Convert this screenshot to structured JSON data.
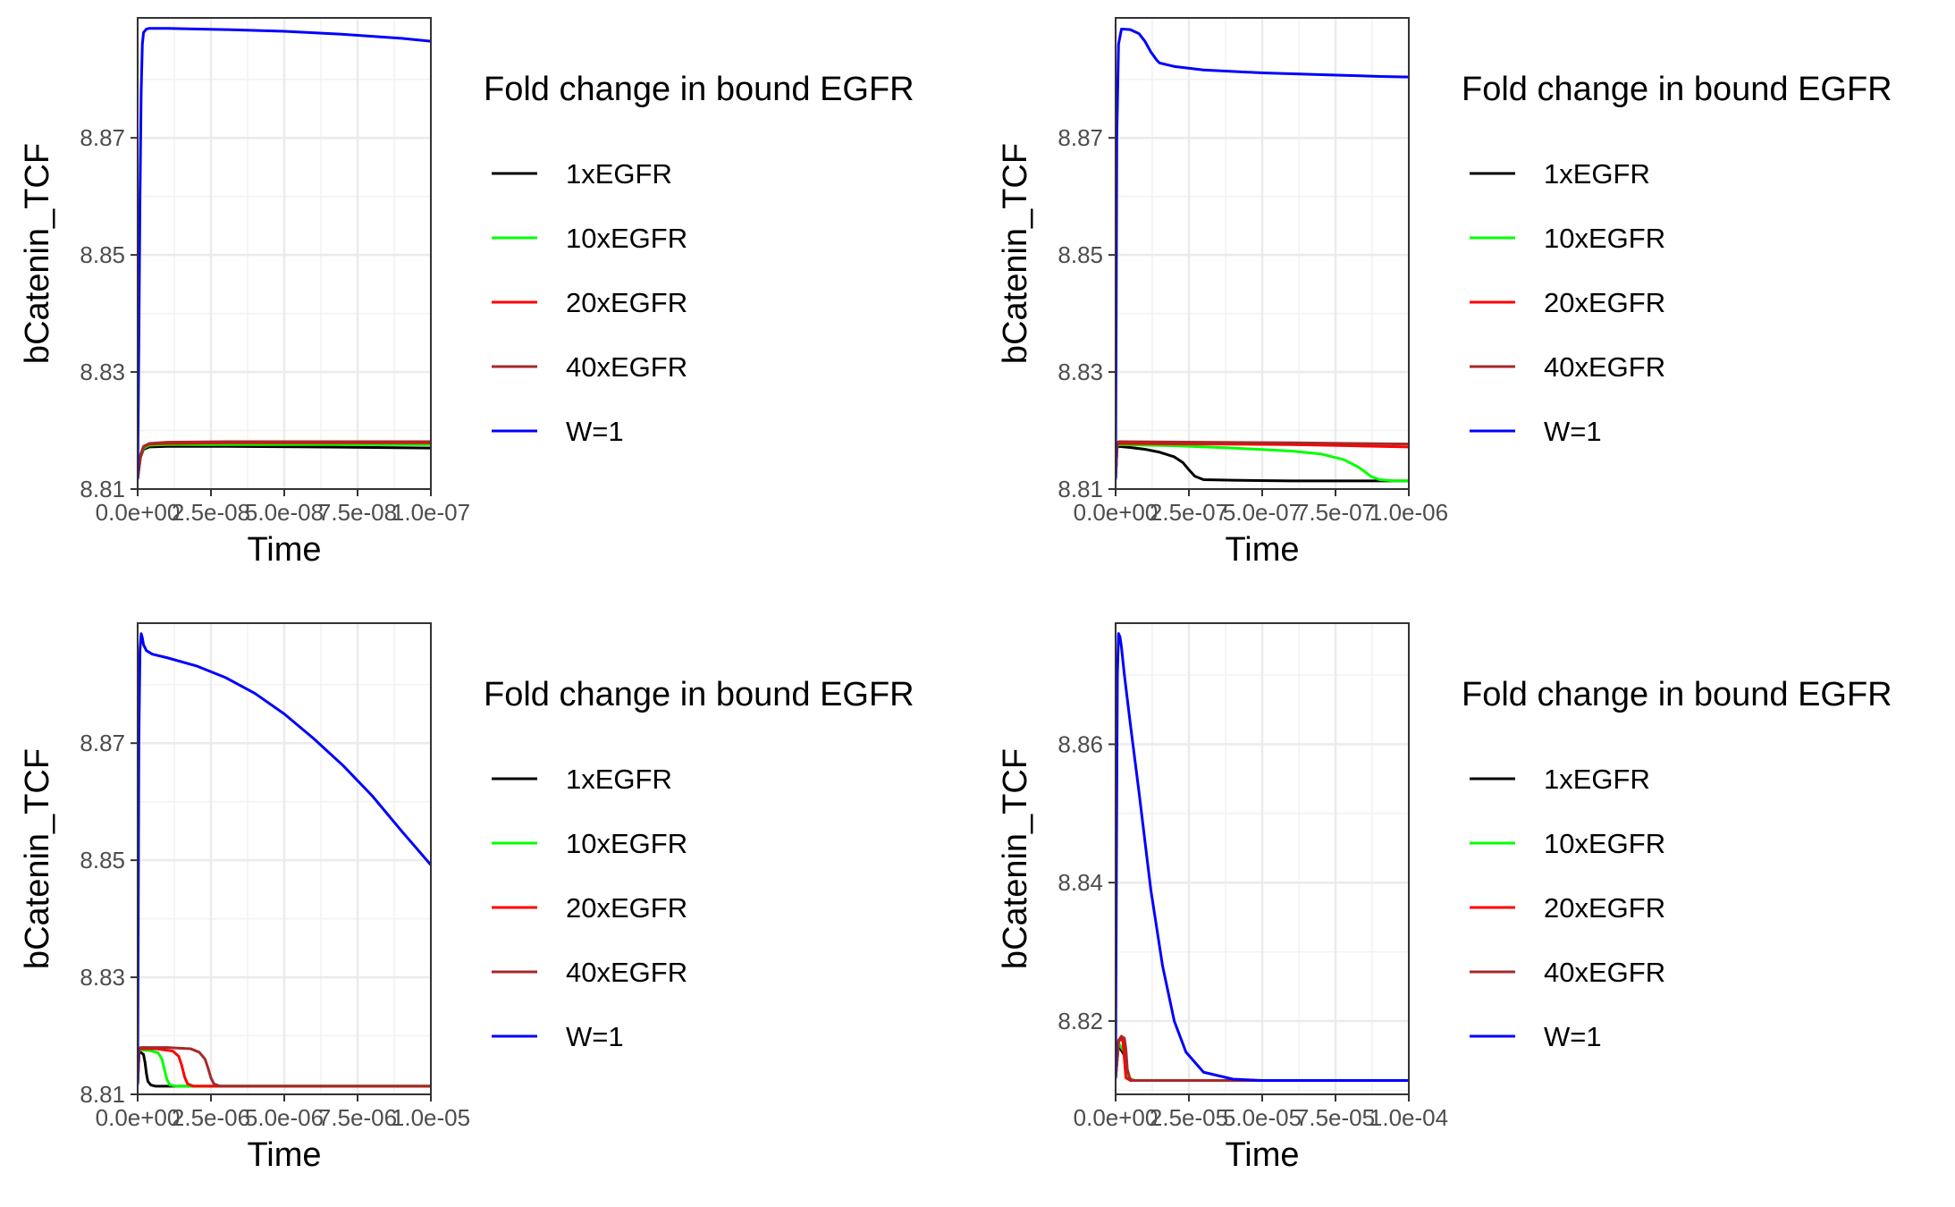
{
  "chart_data": [
    {
      "type": "line",
      "xlabel": "Time",
      "ylabel": "bCatenin_TCF",
      "xlim": [
        0,
        1e-07
      ],
      "ylim": [
        8.81,
        8.8905
      ],
      "x_tick_values": [
        0,
        2.5e-08,
        5e-08,
        7.5e-08,
        1e-07
      ],
      "x_tick_labels": [
        "0.0e+00",
        "2.5e-08",
        "5.0e-08",
        "7.5e-08",
        "1.0e-07"
      ],
      "y_tick_values": [
        8.81,
        8.83,
        8.85,
        8.87
      ],
      "y_tick_labels": [
        "8.81",
        "8.83",
        "8.85",
        "8.87"
      ],
      "grid": true,
      "legend": {
        "title": "Fold change in bound EGFR",
        "placement": "right",
        "entries": [
          "1xEGFR",
          "10xEGFR",
          "20xEGFR",
          "40xEGFR",
          "W=1"
        ]
      },
      "series": [
        {
          "name": "1xEGFR",
          "color": "#000000",
          "x": [
            0,
            1e-09,
            2e-09,
            4e-09,
            1e-08,
            3e-08,
            6e-08,
            1e-07
          ],
          "y": [
            8.8118,
            8.8155,
            8.8168,
            8.8172,
            8.8173,
            8.8173,
            8.8172,
            8.817
          ]
        },
        {
          "name": "10xEGFR",
          "color": "#00ff00",
          "x": [
            0,
            1e-09,
            2e-09,
            4e-09,
            1e-08,
            3e-08,
            6e-08,
            1e-07
          ],
          "y": [
            8.8118,
            8.8157,
            8.817,
            8.8175,
            8.8176,
            8.8176,
            8.8176,
            8.8176
          ]
        },
        {
          "name": "20xEGFR",
          "color": "#ff0000",
          "x": [
            0,
            1e-09,
            2e-09,
            4e-09,
            1e-08,
            3e-08,
            6e-08,
            1e-07
          ],
          "y": [
            8.8118,
            8.8158,
            8.8172,
            8.8177,
            8.8178,
            8.8179,
            8.8179,
            8.8179
          ]
        },
        {
          "name": "40xEGFR",
          "color": "#a52a2a",
          "x": [
            0,
            1e-09,
            2e-09,
            4e-09,
            1e-08,
            3e-08,
            6e-08,
            1e-07
          ],
          "y": [
            8.8118,
            8.8159,
            8.8173,
            8.8178,
            8.818,
            8.8181,
            8.8181,
            8.8181
          ]
        },
        {
          "name": "W=1",
          "color": "#0000ff",
          "x": [
            0,
            4e-10,
            8e-10,
            1.2e-09,
            1.6e-09,
            2e-09,
            3e-09,
            4e-09,
            1e-08,
            3e-08,
            5e-08,
            7e-08,
            9e-08,
            1e-07
          ],
          "y": [
            8.8118,
            8.835,
            8.86,
            8.878,
            8.886,
            8.888,
            8.8886,
            8.8887,
            8.8887,
            8.8885,
            8.8882,
            8.8877,
            8.887,
            8.8865
          ]
        }
      ]
    },
    {
      "type": "line",
      "xlabel": "Time",
      "ylabel": "bCatenin_TCF",
      "xlim": [
        0,
        1e-06
      ],
      "ylim": [
        8.81,
        8.8905
      ],
      "x_tick_values": [
        0,
        2.5e-07,
        5e-07,
        7.5e-07,
        1e-06
      ],
      "x_tick_labels": [
        "0.0e+00",
        "2.5e-07",
        "5.0e-07",
        "7.5e-07",
        "1.0e-06"
      ],
      "y_tick_values": [
        8.81,
        8.83,
        8.85,
        8.87
      ],
      "y_tick_labels": [
        "8.81",
        "8.83",
        "8.85",
        "8.87"
      ],
      "grid": true,
      "legend": {
        "title": "Fold change in bound EGFR",
        "placement": "right",
        "entries": [
          "1xEGFR",
          "10xEGFR",
          "20xEGFR",
          "40xEGFR",
          "W=1"
        ]
      },
      "series": [
        {
          "name": "1xEGFR",
          "color": "#000000",
          "x": [
            0,
            5e-09,
            1e-08,
            5e-08,
            1e-07,
            1.5e-07,
            2e-07,
            2.3e-07,
            2.5e-07,
            2.7e-07,
            3e-07,
            4e-07,
            6e-07,
            8e-07,
            1e-06
          ],
          "y": [
            8.8118,
            8.817,
            8.8173,
            8.8171,
            8.8168,
            8.8163,
            8.8155,
            8.8145,
            8.8133,
            8.8122,
            8.8116,
            8.8115,
            8.8114,
            8.8114,
            8.8114
          ]
        },
        {
          "name": "10xEGFR",
          "color": "#00ff00",
          "x": [
            0,
            5e-09,
            1e-08,
            2e-07,
            4e-07,
            6e-07,
            7e-07,
            7.8e-07,
            8.3e-07,
            8.7e-07,
            9e-07,
            9.5e-07,
            1e-06
          ],
          "y": [
            8.8118,
            8.8173,
            8.8176,
            8.8174,
            8.817,
            8.8165,
            8.816,
            8.815,
            8.8137,
            8.8122,
            8.8116,
            8.8114,
            8.8114
          ]
        },
        {
          "name": "20xEGFR",
          "color": "#ff0000",
          "x": [
            0,
            5e-09,
            1e-08,
            3e-07,
            6e-07,
            8e-07,
            1e-06
          ],
          "y": [
            8.8118,
            8.8175,
            8.8178,
            8.8177,
            8.8176,
            8.8174,
            8.8172
          ]
        },
        {
          "name": "40xEGFR",
          "color": "#a52a2a",
          "x": [
            0,
            5e-09,
            1e-08,
            3e-07,
            6e-07,
            8e-07,
            1e-06
          ],
          "y": [
            8.8118,
            8.8176,
            8.8181,
            8.818,
            8.8179,
            8.8178,
            8.8177
          ]
        },
        {
          "name": "W=1",
          "color": "#0000ff",
          "x": [
            0,
            4e-09,
            1e-08,
            2e-08,
            5e-08,
            8e-08,
            1e-07,
            1.2e-07,
            1.4e-07,
            1.5e-07,
            2e-07,
            3e-07,
            5e-07,
            7e-07,
            9e-07,
            1e-06
          ],
          "y": [
            8.8118,
            8.87,
            8.886,
            8.8886,
            8.8885,
            8.8878,
            8.8865,
            8.8847,
            8.8833,
            8.8828,
            8.8822,
            8.8816,
            8.8811,
            8.8808,
            8.8805,
            8.8804
          ]
        }
      ]
    },
    {
      "type": "line",
      "xlabel": "Time",
      "ylabel": "bCatenin_TCF",
      "xlim": [
        0,
        1e-05
      ],
      "ylim": [
        8.81,
        8.8905
      ],
      "x_tick_values": [
        0,
        2.5e-06,
        5e-06,
        7.5e-06,
        1e-05
      ],
      "x_tick_labels": [
        "0.0e+00",
        "2.5e-06",
        "5.0e-06",
        "7.5e-06",
        "1.0e-05"
      ],
      "y_tick_values": [
        8.81,
        8.83,
        8.85,
        8.87
      ],
      "y_tick_labels": [
        "8.81",
        "8.83",
        "8.85",
        "8.87"
      ],
      "grid": true,
      "legend": {
        "title": "Fold change in bound EGFR",
        "placement": "right",
        "entries": [
          "1xEGFR",
          "10xEGFR",
          "20xEGFR",
          "40xEGFR",
          "W=1"
        ]
      },
      "series": [
        {
          "name": "1xEGFR",
          "color": "#000000",
          "x": [
            0,
            5e-08,
            1e-07,
            2e-07,
            2.5e-07,
            3e-07,
            3.5e-07,
            4.5e-07,
            6e-07,
            1e-06,
            3e-06,
            6e-06,
            1e-05
          ],
          "y": [
            8.8118,
            8.8172,
            8.8172,
            8.8168,
            8.8155,
            8.8135,
            8.8122,
            8.8116,
            8.8114,
            8.8114,
            8.8114,
            8.8114,
            8.8114
          ]
        },
        {
          "name": "10xEGFR",
          "color": "#00ff00",
          "x": [
            0,
            5e-08,
            1e-07,
            4e-07,
            7e-07,
            8.3e-07,
            9e-07,
            1e-06,
            1.1e-06,
            1.3e-06,
            2e-06,
            5e-06,
            1e-05
          ],
          "y": [
            8.8118,
            8.8175,
            8.8176,
            8.8175,
            8.8171,
            8.816,
            8.8145,
            8.8125,
            8.8116,
            8.8114,
            8.8114,
            8.8114,
            8.8114
          ]
        },
        {
          "name": "20xEGFR",
          "color": "#ff0000",
          "x": [
            0,
            5e-08,
            1e-07,
            6e-07,
            1.2e-06,
            1.4e-06,
            1.5e-06,
            1.6e-06,
            1.7e-06,
            1.9e-06,
            3e-06,
            6e-06,
            1e-05
          ],
          "y": [
            8.8118,
            8.8177,
            8.8178,
            8.8178,
            8.8174,
            8.8165,
            8.815,
            8.813,
            8.8118,
            8.8114,
            8.8114,
            8.8114,
            8.8114
          ]
        },
        {
          "name": "40xEGFR",
          "color": "#a52a2a",
          "x": [
            0,
            5e-08,
            1e-07,
            1e-06,
            1.8e-06,
            2.1e-06,
            2.3e-06,
            2.4e-06,
            2.5e-06,
            2.6e-06,
            2.8e-06,
            4e-06,
            7e-06,
            1e-05
          ],
          "y": [
            8.8118,
            8.8178,
            8.818,
            8.818,
            8.8178,
            8.8172,
            8.816,
            8.8145,
            8.8128,
            8.8118,
            8.8114,
            8.8114,
            8.8114,
            8.8114
          ]
        },
        {
          "name": "W=1",
          "color": "#0000ff",
          "x": [
            0,
            4e-08,
            8e-08,
            1.2e-07,
            1.6e-07,
            2e-07,
            3e-07,
            5e-07,
            1e-06,
            2e-06,
            3e-06,
            4e-06,
            5e-06,
            6e-06,
            7e-06,
            8e-06,
            9e-06,
            1e-05
          ],
          "y": [
            8.8118,
            8.87,
            8.886,
            8.8887,
            8.888,
            8.8868,
            8.8858,
            8.8852,
            8.8846,
            8.8832,
            8.8812,
            8.8785,
            8.875,
            8.8708,
            8.8662,
            8.861,
            8.855,
            8.8492
          ]
        }
      ]
    },
    {
      "type": "line",
      "xlabel": "Time",
      "ylabel": "bCatenin_TCF",
      "xlim": [
        0,
        0.0001
      ],
      "ylim": [
        8.8094,
        8.8775
      ],
      "x_tick_values": [
        0,
        2.5e-05,
        5e-05,
        7.5e-05,
        0.0001
      ],
      "x_tick_labels": [
        "0.0e+00",
        "2.5e-05",
        "5.0e-05",
        "7.5e-05",
        "1.0e-04"
      ],
      "y_tick_values": [
        8.82,
        8.84,
        8.86
      ],
      "y_tick_labels": [
        "8.82",
        "8.84",
        "8.86"
      ],
      "grid": true,
      "legend": {
        "title": "Fold change in bound EGFR",
        "placement": "right",
        "entries": [
          "1xEGFR",
          "10xEGFR",
          "20xEGFR",
          "40xEGFR",
          "W=1"
        ]
      },
      "series": [
        {
          "name": "1xEGFR",
          "color": "#000000",
          "x": [
            0,
            1e-06,
            3e-06,
            4e-06,
            6e-06,
            1e-05,
            5e-05,
            0.0001
          ],
          "y": [
            8.8118,
            8.8165,
            8.815,
            8.812,
            8.8114,
            8.8114,
            8.8114,
            8.8114
          ]
        },
        {
          "name": "10xEGFR",
          "color": "#00ff00",
          "x": [
            0,
            1e-06,
            3e-06,
            4e-06,
            6e-06,
            1e-05,
            5e-05,
            0.0001
          ],
          "y": [
            8.8118,
            8.8168,
            8.8155,
            8.812,
            8.8114,
            8.8114,
            8.8114,
            8.8114
          ]
        },
        {
          "name": "20xEGFR",
          "color": "#ff0000",
          "x": [
            0,
            1e-06,
            2e-06,
            2.5e-06,
            3e-06,
            3.5e-06,
            5e-06,
            1e-05,
            0.0001
          ],
          "y": [
            8.8118,
            8.817,
            8.8175,
            8.817,
            8.8145,
            8.8118,
            8.8114,
            8.8114,
            8.8114
          ]
        },
        {
          "name": "40xEGFR",
          "color": "#a52a2a",
          "x": [
            0,
            1e-06,
            2e-06,
            3e-06,
            3.5e-06,
            4e-06,
            5e-06,
            7e-06,
            1e-05,
            0.0001
          ],
          "y": [
            8.8118,
            8.8172,
            8.8178,
            8.8175,
            8.816,
            8.813,
            8.8115,
            8.8114,
            8.8114,
            8.8114
          ]
        },
        {
          "name": "W=1",
          "color": "#0000ff",
          "x": [
            0,
            3e-07,
            6e-07,
            1e-06,
            1.5e-06,
            2e-06,
            3e-06,
            5e-06,
            8e-06,
            1.2e-05,
            1.6e-05,
            2e-05,
            2.4e-05,
            3e-05,
            4e-05,
            5e-05,
            6e-05,
            8e-05,
            0.0001
          ],
          "y": [
            8.8118,
            8.845,
            8.87,
            8.876,
            8.8755,
            8.874,
            8.87,
            8.863,
            8.853,
            8.839,
            8.828,
            8.82,
            8.8155,
            8.8126,
            8.8116,
            8.8114,
            8.8114,
            8.8114,
            8.8114
          ]
        }
      ]
    }
  ]
}
